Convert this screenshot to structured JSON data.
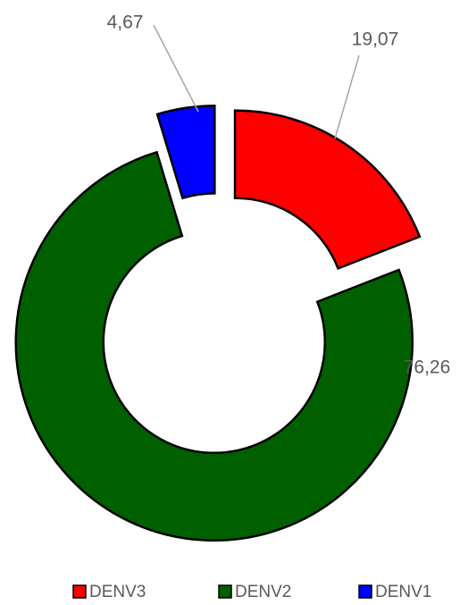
{
  "chart_data": {
    "type": "donut",
    "categories": [
      "DENV3",
      "DENV2",
      "DENV1"
    ],
    "values": [
      19.07,
      76.26,
      4.67
    ],
    "value_labels": [
      "19,07",
      "76,26",
      "4,67"
    ],
    "colors": [
      "#ff0000",
      "#006000",
      "#0000ff"
    ]
  }
}
